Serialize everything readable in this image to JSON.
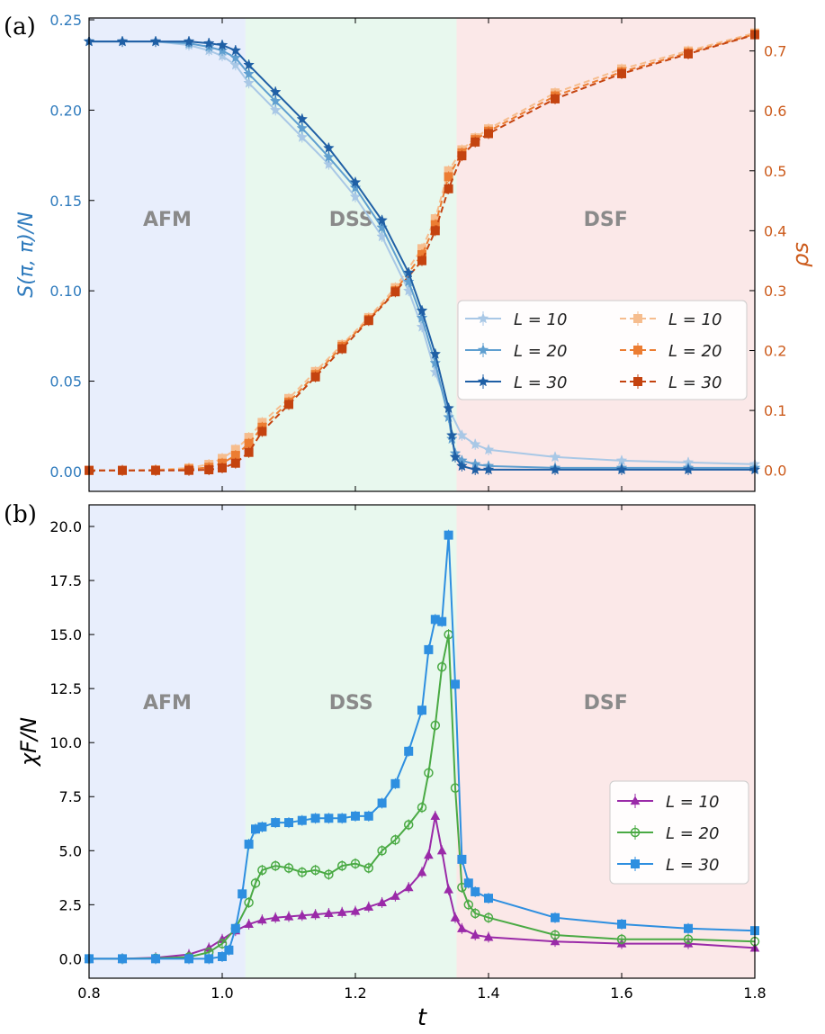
{
  "chart_data": [
    {
      "panel_label": "(a)",
      "type": "line",
      "xlim": [
        0.8,
        1.8
      ],
      "x_ticks": [
        "0.8",
        "1.0",
        "1.2",
        "1.4",
        "1.6",
        "1.8"
      ],
      "regions": [
        {
          "label": "AFM",
          "x_start": 0.8,
          "x_end": 1.035,
          "color": "#e8eefc"
        },
        {
          "label": "DSS",
          "x_start": 1.035,
          "x_end": 1.352,
          "color": "#e8f8ee"
        },
        {
          "label": "DSF",
          "x_start": 1.352,
          "x_end": 1.8,
          "color": "#fbe8e8"
        }
      ],
      "left_axis": {
        "ylabel": "S(π, π)/N",
        "color": "#2f7bbd",
        "ylim": [
          -0.011,
          0.251
        ],
        "ticks": [
          "0.00",
          "0.05",
          "0.10",
          "0.15",
          "0.20",
          "0.25"
        ],
        "series": [
          {
            "name": "L = 10",
            "color": "#a9c8e6",
            "marker": "star",
            "x": [
              0.8,
              0.85,
              0.9,
              0.95,
              0.98,
              1.0,
              1.02,
              1.04,
              1.08,
              1.12,
              1.16,
              1.2,
              1.24,
              1.28,
              1.3,
              1.32,
              1.34,
              1.36,
              1.38,
              1.4,
              1.5,
              1.6,
              1.7,
              1.8
            ],
            "y": [
              0.238,
              0.238,
              0.238,
              0.236,
              0.233,
              0.23,
              0.225,
              0.215,
              0.2,
              0.185,
              0.17,
              0.152,
              0.13,
              0.1,
              0.08,
              0.055,
              0.035,
              0.02,
              0.015,
              0.012,
              0.008,
              0.006,
              0.005,
              0.004
            ]
          },
          {
            "name": "L = 20",
            "color": "#5f9fd0",
            "marker": "star",
            "x": [
              0.8,
              0.85,
              0.9,
              0.95,
              0.98,
              1.0,
              1.02,
              1.04,
              1.08,
              1.12,
              1.16,
              1.2,
              1.24,
              1.28,
              1.3,
              1.32,
              1.34,
              1.345,
              1.35,
              1.36,
              1.38,
              1.4,
              1.5,
              1.6,
              1.7,
              1.8
            ],
            "y": [
              0.238,
              0.238,
              0.238,
              0.237,
              0.235,
              0.233,
              0.229,
              0.22,
              0.205,
              0.19,
              0.174,
              0.157,
              0.135,
              0.105,
              0.085,
              0.06,
              0.03,
              0.018,
              0.01,
              0.006,
              0.004,
              0.003,
              0.002,
              0.002,
              0.002,
              0.002
            ]
          },
          {
            "name": "L = 30",
            "color": "#1f5fa5",
            "marker": "star",
            "x": [
              0.8,
              0.85,
              0.9,
              0.95,
              0.98,
              1.0,
              1.02,
              1.04,
              1.08,
              1.12,
              1.16,
              1.2,
              1.24,
              1.28,
              1.3,
              1.32,
              1.34,
              1.345,
              1.35,
              1.36,
              1.38,
              1.4,
              1.5,
              1.6,
              1.7,
              1.8
            ],
            "y": [
              0.238,
              0.238,
              0.238,
              0.238,
              0.237,
              0.236,
              0.233,
              0.225,
              0.21,
              0.195,
              0.179,
              0.16,
              0.139,
              0.11,
              0.089,
              0.065,
              0.035,
              0.02,
              0.008,
              0.003,
              0.001,
              0.001,
              0.001,
              0.001,
              0.001,
              0.001
            ]
          }
        ]
      },
      "right_axis": {
        "ylabel": "ρs",
        "color": "#cc5b1c",
        "ylim": [
          -0.035,
          0.755
        ],
        "ticks": [
          "0.0",
          "0.1",
          "0.2",
          "0.3",
          "0.4",
          "0.5",
          "0.6",
          "0.7"
        ],
        "series": [
          {
            "name": "L = 10",
            "color": "#f6bd8e",
            "marker": "square",
            "x": [
              0.8,
              0.85,
              0.9,
              0.95,
              0.98,
              1.0,
              1.02,
              1.04,
              1.06,
              1.1,
              1.14,
              1.18,
              1.22,
              1.26,
              1.3,
              1.32,
              1.34,
              1.36,
              1.38,
              1.4,
              1.5,
              1.6,
              1.7,
              1.8
            ],
            "y": [
              0.0,
              0.0,
              0.001,
              0.004,
              0.01,
              0.02,
              0.035,
              0.055,
              0.08,
              0.12,
              0.165,
              0.21,
              0.255,
              0.305,
              0.37,
              0.42,
              0.5,
              0.535,
              0.555,
              0.57,
              0.63,
              0.67,
              0.7,
              0.73
            ]
          },
          {
            "name": "L = 20",
            "color": "#ec7d32",
            "marker": "square",
            "x": [
              0.8,
              0.85,
              0.9,
              0.95,
              0.98,
              1.0,
              1.02,
              1.04,
              1.06,
              1.1,
              1.14,
              1.18,
              1.22,
              1.26,
              1.3,
              1.32,
              1.34,
              1.36,
              1.38,
              1.4,
              1.5,
              1.6,
              1.7,
              1.8
            ],
            "y": [
              0.0,
              0.0,
              0.0,
              0.002,
              0.005,
              0.012,
              0.025,
              0.045,
              0.072,
              0.114,
              0.16,
              0.207,
              0.252,
              0.3,
              0.36,
              0.41,
              0.49,
              0.53,
              0.552,
              0.566,
              0.625,
              0.665,
              0.697,
              0.728
            ]
          },
          {
            "name": "L = 30",
            "color": "#c4430f",
            "marker": "square",
            "x": [
              0.8,
              0.85,
              0.9,
              0.95,
              0.98,
              1.0,
              1.02,
              1.04,
              1.06,
              1.1,
              1.14,
              1.18,
              1.22,
              1.26,
              1.3,
              1.32,
              1.34,
              1.36,
              1.38,
              1.4,
              1.5,
              1.6,
              1.7,
              1.8
            ],
            "y": [
              0.0,
              0.0,
              0.0,
              0.0,
              0.001,
              0.004,
              0.012,
              0.03,
              0.065,
              0.11,
              0.156,
              0.203,
              0.25,
              0.298,
              0.35,
              0.4,
              0.47,
              0.525,
              0.548,
              0.562,
              0.62,
              0.662,
              0.695,
              0.727
            ]
          }
        ]
      },
      "legend_left": [
        "L = 10",
        "L = 20",
        "L = 30"
      ],
      "legend_right": [
        "L = 10",
        "L = 20",
        "L = 30"
      ]
    },
    {
      "panel_label": "(b)",
      "type": "line",
      "xlabel": "t",
      "ylabel": "χF/N",
      "xlim": [
        0.8,
        1.8
      ],
      "ylim": [
        -0.9,
        21.0
      ],
      "x_ticks": [
        "0.8",
        "1.0",
        "1.2",
        "1.4",
        "1.6",
        "1.8"
      ],
      "y_ticks": [
        "0.0",
        "2.5",
        "5.0",
        "7.5",
        "10.0",
        "12.5",
        "15.0",
        "17.5",
        "20.0"
      ],
      "regions": [
        {
          "label": "AFM",
          "x_start": 0.8,
          "x_end": 1.035,
          "color": "#e8eefc"
        },
        {
          "label": "DSS",
          "x_start": 1.035,
          "x_end": 1.352,
          "color": "#e8f8ee"
        },
        {
          "label": "DSF",
          "x_start": 1.352,
          "x_end": 1.8,
          "color": "#fbe8e8"
        }
      ],
      "series": [
        {
          "name": "L = 10",
          "color": "#9a2aa8",
          "marker": "triangle",
          "x": [
            0.8,
            0.85,
            0.9,
            0.95,
            0.98,
            1.0,
            1.02,
            1.04,
            1.06,
            1.08,
            1.1,
            1.12,
            1.14,
            1.16,
            1.18,
            1.2,
            1.22,
            1.24,
            1.26,
            1.28,
            1.3,
            1.31,
            1.32,
            1.33,
            1.34,
            1.35,
            1.36,
            1.38,
            1.4,
            1.5,
            1.6,
            1.7,
            1.8
          ],
          "y": [
            0.0,
            0.0,
            0.05,
            0.2,
            0.5,
            0.9,
            1.3,
            1.6,
            1.8,
            1.9,
            1.95,
            2.0,
            2.05,
            2.1,
            2.15,
            2.2,
            2.4,
            2.6,
            2.9,
            3.3,
            4.0,
            4.8,
            6.6,
            5.0,
            3.2,
            1.9,
            1.4,
            1.1,
            1.0,
            0.8,
            0.7,
            0.7,
            0.5
          ]
        },
        {
          "name": "L = 20",
          "color": "#4aaa44",
          "marker": "circle",
          "x": [
            0.8,
            0.85,
            0.9,
            0.95,
            0.98,
            1.0,
            1.02,
            1.04,
            1.05,
            1.06,
            1.08,
            1.1,
            1.12,
            1.14,
            1.16,
            1.18,
            1.2,
            1.22,
            1.24,
            1.26,
            1.28,
            1.3,
            1.31,
            1.32,
            1.33,
            1.34,
            1.35,
            1.36,
            1.37,
            1.38,
            1.4,
            1.5,
            1.6,
            1.7,
            1.8
          ],
          "y": [
            0.0,
            0.0,
            0.02,
            0.08,
            0.3,
            0.7,
            1.4,
            2.6,
            3.5,
            4.1,
            4.3,
            4.2,
            4.0,
            4.1,
            3.9,
            4.3,
            4.4,
            4.2,
            5.0,
            5.5,
            6.2,
            7.0,
            8.6,
            10.8,
            13.5,
            15.0,
            7.9,
            3.3,
            2.5,
            2.1,
            1.9,
            1.1,
            0.9,
            0.9,
            0.8
          ]
        },
        {
          "name": "L = 30",
          "color": "#2e8fe0",
          "marker": "square",
          "x": [
            0.8,
            0.85,
            0.9,
            0.95,
            0.98,
            1.0,
            1.01,
            1.02,
            1.03,
            1.04,
            1.05,
            1.06,
            1.08,
            1.1,
            1.12,
            1.14,
            1.16,
            1.18,
            1.2,
            1.22,
            1.24,
            1.26,
            1.28,
            1.3,
            1.31,
            1.32,
            1.33,
            1.34,
            1.35,
            1.36,
            1.37,
            1.38,
            1.4,
            1.5,
            1.6,
            1.7,
            1.8
          ],
          "y": [
            0.0,
            0.0,
            0.0,
            0.0,
            0.0,
            0.1,
            0.4,
            1.4,
            3.0,
            5.3,
            6.0,
            6.1,
            6.3,
            6.3,
            6.4,
            6.5,
            6.5,
            6.5,
            6.6,
            6.6,
            7.2,
            8.1,
            9.6,
            11.5,
            14.3,
            15.7,
            15.6,
            19.6,
            12.7,
            4.6,
            3.5,
            3.1,
            2.8,
            1.9,
            1.6,
            1.4,
            1.3
          ]
        }
      ],
      "legend": [
        "L = 10",
        "L = 20",
        "L = 30"
      ]
    }
  ]
}
